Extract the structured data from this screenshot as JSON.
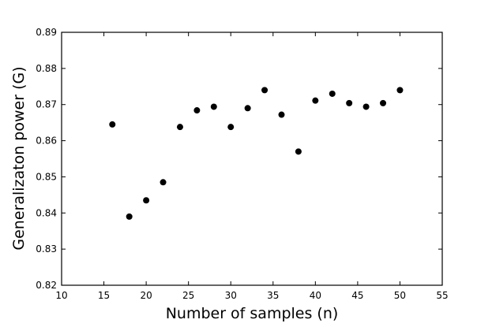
{
  "chart_data": {
    "type": "scatter",
    "title": "",
    "xlabel": "Number of samples (n)",
    "ylabel": "Generalizaton power (G)",
    "xlim": [
      10,
      55
    ],
    "ylim": [
      0.82,
      0.89
    ],
    "xticks": [
      "10",
      "15",
      "20",
      "25",
      "30",
      "35",
      "40",
      "45",
      "50",
      "55"
    ],
    "yticks": [
      "0.82",
      "0.83",
      "0.84",
      "0.85",
      "0.86",
      "0.87",
      "0.88",
      "0.89"
    ],
    "grid": false,
    "legend": "none",
    "marker_color": "#000000",
    "series": [
      {
        "x": [
          16,
          18,
          20,
          22,
          24,
          26,
          28,
          30,
          32,
          34,
          36,
          38,
          40,
          42,
          44,
          46,
          48,
          50
        ],
        "y": [
          0.8645,
          0.839,
          0.8435,
          0.8485,
          0.8638,
          0.8684,
          0.8694,
          0.8638,
          0.869,
          0.874,
          0.8672,
          0.857,
          0.8711,
          0.873,
          0.8704,
          0.8694,
          0.8704,
          0.874
        ]
      }
    ]
  }
}
